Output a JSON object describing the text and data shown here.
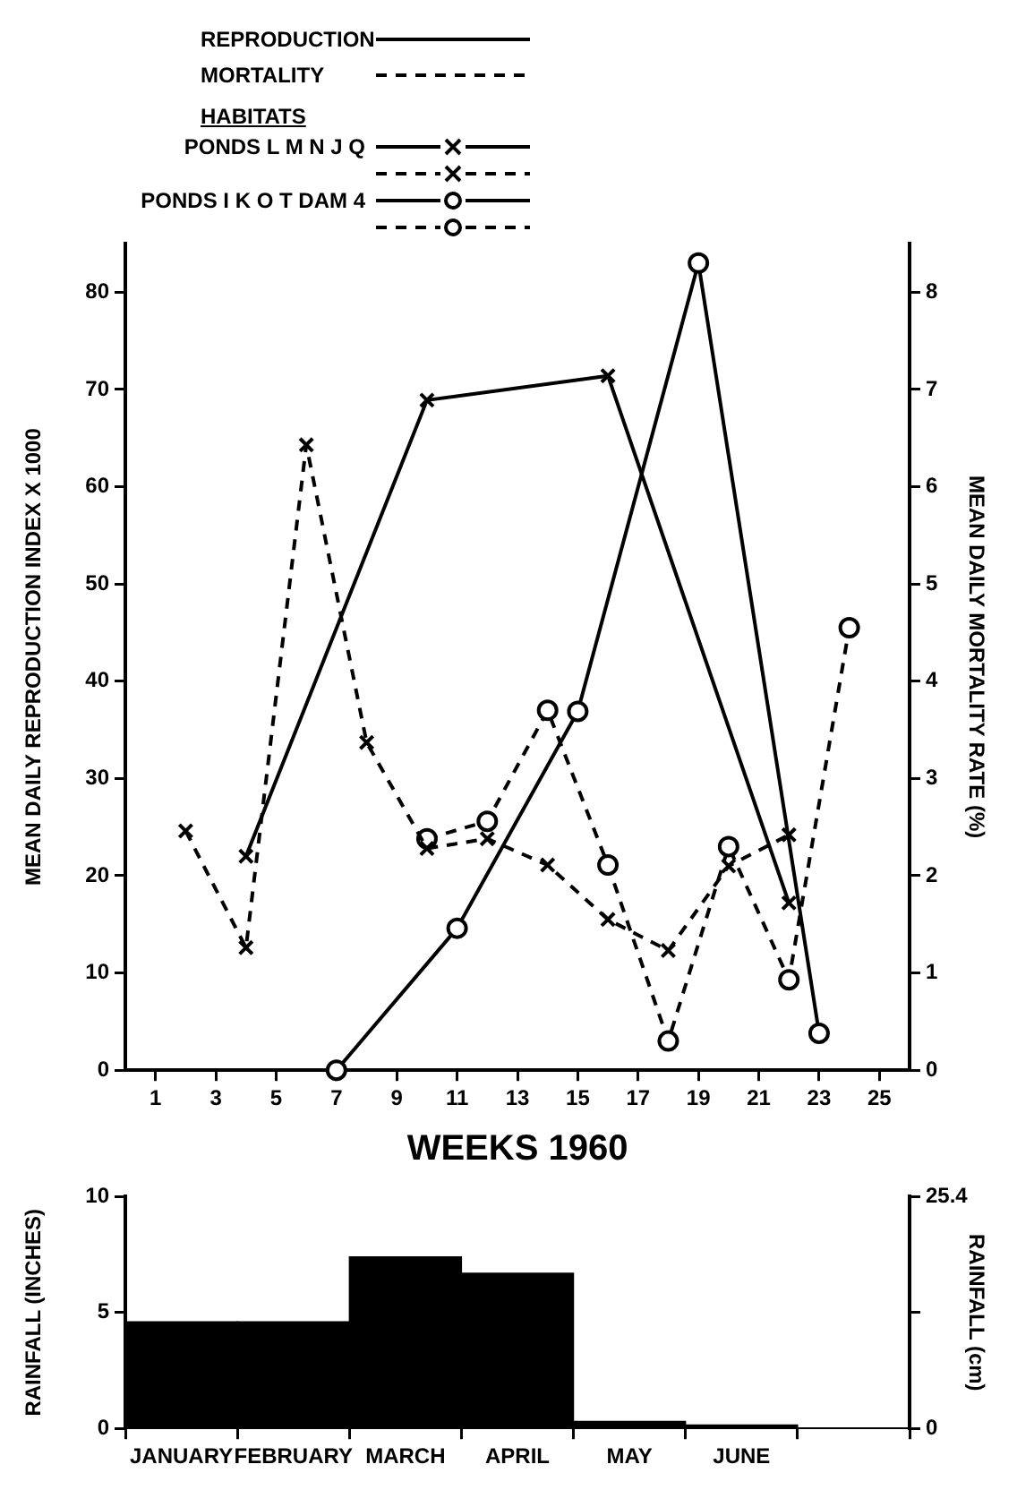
{
  "chart_data": [
    {
      "type": "line",
      "xlabel": "WEEKS 1960",
      "ylabel": "MEAN DAILY REPRODUCTION INDEX X 1000",
      "y2label": "MEAN DAILY MORTALITY RATE (%)",
      "legend_title": "HABITATS",
      "annotations": [
        "REPRODUCTION",
        "MORTALITY"
      ],
      "xlim": [
        0,
        26
      ],
      "xticks": [
        1,
        3,
        5,
        7,
        9,
        11,
        13,
        15,
        17,
        19,
        21,
        23,
        25
      ],
      "ylim": [
        0,
        85
      ],
      "yticks": [
        0,
        10,
        20,
        30,
        40,
        50,
        60,
        70,
        80
      ],
      "y2lim": [
        0,
        8.5
      ],
      "y2ticks": [
        0,
        1,
        2,
        3,
        4,
        5,
        6,
        7,
        8
      ],
      "grid": false,
      "legend": "top",
      "series": [
        {
          "name": "PONDS L M N J Q",
          "color": "#000000",
          "x": [
            4,
            10,
            16,
            22
          ],
          "values": [
            22,
            68.9,
            71.4,
            17.2
          ],
          "marker": "cross",
          "line_style": "solid"
        },
        {
          "color": "#000000",
          "axis": "y2",
          "x": [
            2,
            4,
            6,
            8,
            10,
            12,
            14,
            16,
            18,
            20,
            22
          ],
          "values": [
            2.46,
            1.26,
            6.43,
            3.37,
            2.28,
            2.38,
            2.11,
            1.55,
            1.23,
            2.1,
            2.42
          ],
          "marker": "cross",
          "line_style": "dashed"
        },
        {
          "name": "PONDS I K O T DAM 4",
          "color": "#000000",
          "x": [
            7,
            11,
            15,
            19,
            23
          ],
          "values": [
            0,
            14.6,
            36.9,
            83,
            3.8
          ],
          "marker": "circle",
          "line_style": "solid"
        },
        {
          "color": "#000000",
          "axis": "y2",
          "x": [
            10,
            12,
            14,
            16,
            18,
            20,
            22,
            24
          ],
          "values": [
            2.38,
            2.56,
            3.7,
            2.11,
            0.3,
            2.3,
            0.93,
            4.55
          ],
          "marker": "circle",
          "line_style": "dashed"
        }
      ]
    },
    {
      "type": "bar",
      "categories": [
        "JANUARY",
        "FEBRUARY",
        "MARCH",
        "APRIL",
        "MAY",
        "JUNE",
        null
      ],
      "values": [
        4.6,
        4.6,
        7.4,
        6.7,
        0.3,
        0.15,
        null
      ],
      "color": "#000000",
      "ylabel": "RAINFALL (INCHES)",
      "y2label": "RAINFALL (cm)",
      "ylim": [
        0,
        10
      ],
      "yticks": [
        0,
        5,
        10
      ],
      "y2lim": [
        0,
        25.4
      ],
      "y2ticks": [
        0,
        {
          "value": 12.7,
          "label": null
        },
        25.4
      ],
      "grid": false,
      "legend": false
    }
  ]
}
